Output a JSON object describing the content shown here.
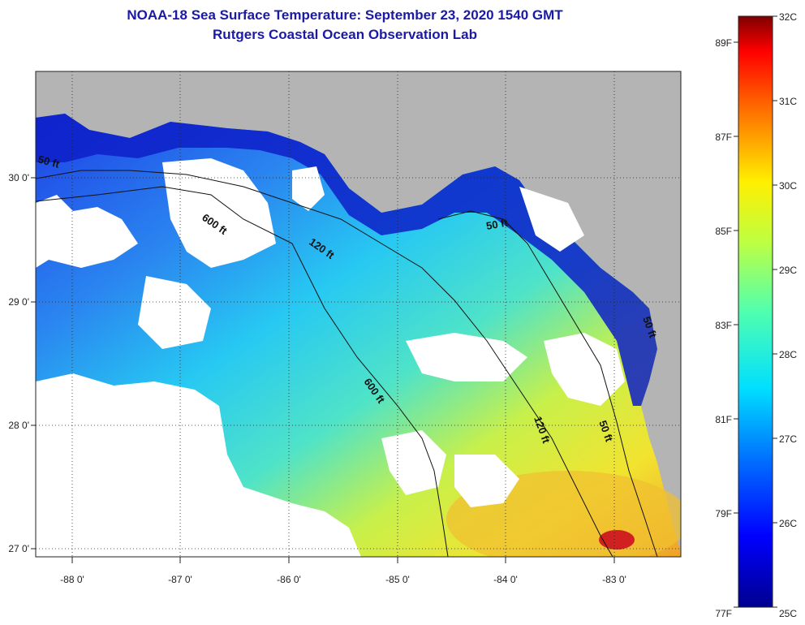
{
  "header": {
    "title": "NOAA-18 Sea Surface Temperature:  September 23, 2020 1540 GMT",
    "subtitle": "Rutgers Coastal Ocean Observation Lab"
  },
  "map": {
    "lat_ticks": [
      "30 0'",
      "29 0'",
      "28 0'",
      "27 0'"
    ],
    "lon_ticks": [
      "-88 0'",
      "-87 0'",
      "-86 0'",
      "-85 0'",
      "-84 0'",
      "-83 0'"
    ],
    "contour_labels": [
      "50 ft",
      "600 ft",
      "120 ft",
      "50 ft",
      "600 ft",
      "120 ft",
      "50 ft",
      "50 ft"
    ]
  },
  "colorbar": {
    "celsius": [
      "32C",
      "31C",
      "30C",
      "29C",
      "28C",
      "27C",
      "26C",
      "25C"
    ],
    "fahrenheit": [
      "89F",
      "87F",
      "85F",
      "83F",
      "81F",
      "79F",
      "77F"
    ]
  },
  "colors": {
    "land": "#b4b4b4",
    "cloud": "#ffffff",
    "title": "#1a1aa6"
  }
}
